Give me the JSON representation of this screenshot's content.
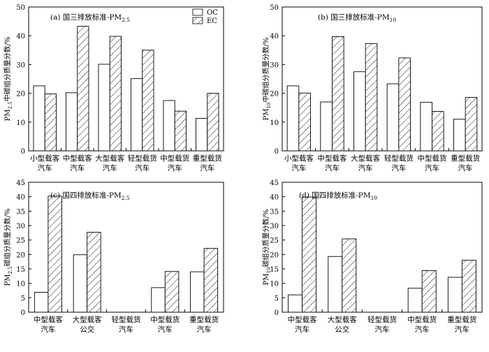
{
  "figure": {
    "legend": {
      "items": [
        {
          "label": "OC",
          "fill": "#ffffff"
        },
        {
          "label": "EC",
          "fill": "hatch"
        }
      ]
    }
  },
  "chart_data": [
    {
      "type": "bar",
      "title": "(a) 国三排放标准-PM",
      "title_subscript": "2.5",
      "ylabel": "PM",
      "ylabel_subscript": "2.5",
      "ylabel_rest": "中碳组分质量分数/%",
      "ylim": [
        0,
        50
      ],
      "yticks": [
        0,
        10,
        20,
        30,
        40,
        50
      ],
      "categories": [
        [
          "小型载客",
          "汽车"
        ],
        [
          "中型载客",
          "汽车"
        ],
        [
          "大型载客",
          "汽车"
        ],
        [
          "轻型载货",
          "汽车"
        ],
        [
          "中型载货",
          "汽车"
        ],
        [
          "重型载货",
          "汽车"
        ]
      ],
      "series": [
        {
          "name": "OC",
          "values": [
            22.6,
            20.2,
            30.1,
            25.1,
            17.5,
            11.3
          ]
        },
        {
          "name": "EC",
          "values": [
            19.8,
            43.3,
            39.8,
            35.0,
            13.8,
            20.0
          ]
        }
      ],
      "legend": "top-right"
    },
    {
      "type": "bar",
      "title": "(b) 国三排放标准-PM",
      "title_subscript": "10",
      "ylabel": "PM",
      "ylabel_subscript": "10",
      "ylabel_rest": "中碳组分质量分数/%",
      "ylim": [
        0,
        50
      ],
      "yticks": [
        0,
        10,
        20,
        30,
        40,
        50
      ],
      "categories": [
        [
          "小型载客",
          "汽车"
        ],
        [
          "中型载客",
          "汽车"
        ],
        [
          "大型载客",
          "汽车"
        ],
        [
          "轻型载货",
          "汽车"
        ],
        [
          "中型载货",
          "汽车"
        ],
        [
          "重型载货",
          "汽车"
        ]
      ],
      "series": [
        {
          "name": "OC",
          "values": [
            22.6,
            17.0,
            27.5,
            23.3,
            16.9,
            11.0
          ]
        },
        {
          "name": "EC",
          "values": [
            20.1,
            39.7,
            37.3,
            32.3,
            13.7,
            18.6
          ]
        }
      ]
    },
    {
      "type": "bar",
      "title": "(c) 国四排放标准-PM",
      "title_subscript": "2.5",
      "ylabel": "PM",
      "ylabel_subscript": "2.5",
      "ylabel_rest": "碳组分质量分数/%",
      "ylim": [
        0,
        45
      ],
      "yticks": [
        0,
        5,
        10,
        15,
        20,
        25,
        30,
        35,
        40,
        45
      ],
      "categories": [
        [
          "中型载客",
          "汽车"
        ],
        [
          "大型载客",
          "公交"
        ],
        [
          "轻型载货",
          "汽车"
        ],
        [
          "中型载货",
          "汽车"
        ],
        [
          "重型载货",
          "汽车"
        ]
      ],
      "series": [
        {
          "name": "OC",
          "values": [
            6.9,
            19.9,
            0,
            8.5,
            14.0
          ]
        },
        {
          "name": "EC",
          "values": [
            40.2,
            27.7,
            0,
            14.1,
            22.1
          ]
        }
      ]
    },
    {
      "type": "bar",
      "title": "(d) 国四排放标准-PM",
      "title_subscript": "10",
      "ylabel": "PM",
      "ylabel_subscript": "10",
      "ylabel_rest": "碳组分质量分数/%",
      "ylim": [
        0,
        45
      ],
      "yticks": [
        0,
        5,
        10,
        15,
        20,
        25,
        30,
        35,
        40,
        45
      ],
      "categories": [
        [
          "中型载客",
          "汽车"
        ],
        [
          "大型载客",
          "公交"
        ],
        [
          "轻型载货",
          "汽车"
        ],
        [
          "中型载货",
          "汽车"
        ],
        [
          "重型载货",
          "汽车"
        ]
      ],
      "series": [
        {
          "name": "OC",
          "values": [
            6.0,
            19.3,
            0,
            8.3,
            12.1
          ]
        },
        {
          "name": "EC",
          "values": [
            39.9,
            25.4,
            0,
            14.4,
            18.0
          ]
        }
      ]
    }
  ]
}
